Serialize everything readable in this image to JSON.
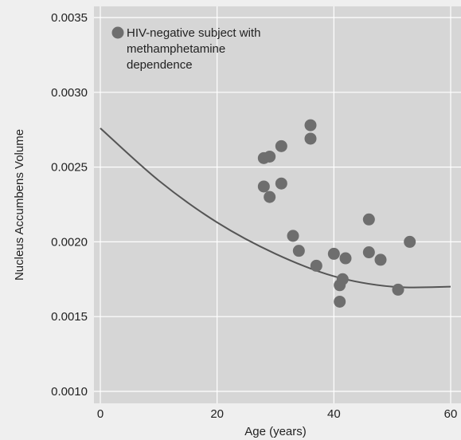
{
  "chart_data": {
    "type": "scatter",
    "xlabel": "Age (years)",
    "ylabel": "Nucleus Accumbens Volume",
    "xlim": [
      0,
      60
    ],
    "ylim": [
      0.001,
      0.0035
    ],
    "xticks": [
      0,
      20,
      40,
      60
    ],
    "xtick_labels": [
      "0",
      "20",
      "40",
      "60"
    ],
    "yticks": [
      0.001,
      0.0015,
      0.002,
      0.0025,
      0.003,
      0.0035
    ],
    "ytick_labels": [
      "0.0010",
      "0.0015",
      "0.0020",
      "0.0025",
      "0.0030",
      "0.0035"
    ],
    "grid": true,
    "legend_position": "top-left",
    "colors": {
      "plot_background": "#d6d6d6",
      "page_background": "#efefef",
      "grid": "#ffffff",
      "points": "#6e6e6e",
      "fit_line": "#555555"
    },
    "series": [
      {
        "name": "HIV-negative subject with methamphetamine dependence",
        "name_lines": [
          "HIV-negative subject with",
          "methamphetamine",
          "dependence"
        ],
        "points": [
          {
            "x": 28,
            "y": 0.00256
          },
          {
            "x": 29,
            "y": 0.00257
          },
          {
            "x": 31,
            "y": 0.00264
          },
          {
            "x": 28,
            "y": 0.00237
          },
          {
            "x": 29,
            "y": 0.0023
          },
          {
            "x": 31,
            "y": 0.00239
          },
          {
            "x": 36,
            "y": 0.00278
          },
          {
            "x": 36,
            "y": 0.00269
          },
          {
            "x": 33,
            "y": 0.00204
          },
          {
            "x": 34,
            "y": 0.00194
          },
          {
            "x": 37,
            "y": 0.00184
          },
          {
            "x": 40,
            "y": 0.00192
          },
          {
            "x": 42,
            "y": 0.00189
          },
          {
            "x": 41,
            "y": 0.00171
          },
          {
            "x": 41.5,
            "y": 0.00175
          },
          {
            "x": 41,
            "y": 0.0016
          },
          {
            "x": 46,
            "y": 0.00215
          },
          {
            "x": 46,
            "y": 0.00193
          },
          {
            "x": 48,
            "y": 0.00188
          },
          {
            "x": 51,
            "y": 0.00168
          },
          {
            "x": 53,
            "y": 0.002
          }
        ]
      }
    ],
    "fit_curve": {
      "type": "quadratic",
      "points": [
        {
          "x": 0,
          "y": 0.00276
        },
        {
          "x": 10,
          "y": 0.00241
        },
        {
          "x": 20,
          "y": 0.00213
        },
        {
          "x": 30,
          "y": 0.00192
        },
        {
          "x": 40,
          "y": 0.00177
        },
        {
          "x": 50,
          "y": 0.0017
        },
        {
          "x": 60,
          "y": 0.0017
        }
      ]
    }
  }
}
